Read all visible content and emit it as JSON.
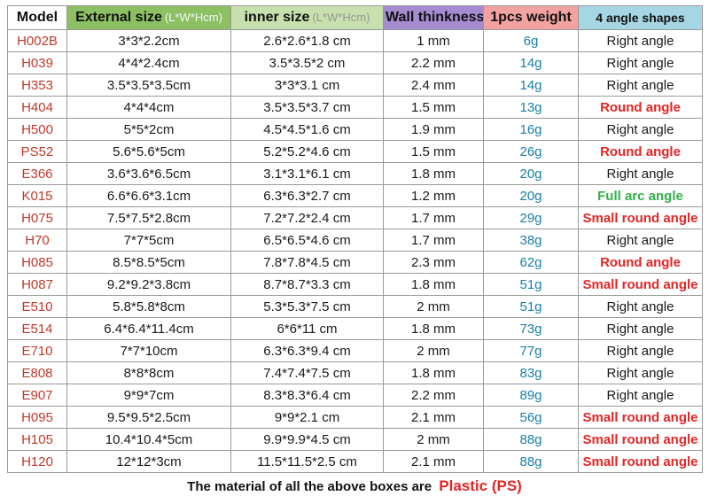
{
  "chart_data": {
    "type": "table",
    "columns": [
      {
        "label": "Model",
        "sub": ""
      },
      {
        "label": "External size",
        "sub": "(L*W*Hcm)"
      },
      {
        "label": "inner size",
        "sub": "(L*W*Hcm)"
      },
      {
        "label": "Wall thinkness",
        "sub": ""
      },
      {
        "label": "1pcs weight",
        "sub": ""
      },
      {
        "label": "4 angle shapes",
        "sub": ""
      }
    ],
    "rows": [
      {
        "model": "H002B",
        "external_size": "3*3*2.2cm",
        "inner_size": "2.6*2.6*1.8 cm",
        "wall_thickness": "1 mm",
        "weight": "6g",
        "angle_shape": "Right angle",
        "angle_type": "right"
      },
      {
        "model": "H039",
        "external_size": "4*4*2.4cm",
        "inner_size": "3.5*3.5*2 cm",
        "wall_thickness": "2.2 mm",
        "weight": "14g",
        "angle_shape": "Right angle",
        "angle_type": "right"
      },
      {
        "model": "H353",
        "external_size": "3.5*3.5*3.5cm",
        "inner_size": "3*3*3.1 cm",
        "wall_thickness": "2.4 mm",
        "weight": "14g",
        "angle_shape": "Right angle",
        "angle_type": "right"
      },
      {
        "model": "H404",
        "external_size": "4*4*4cm",
        "inner_size": "3.5*3.5*3.7 cm",
        "wall_thickness": "1.5 mm",
        "weight": "13g",
        "angle_shape": "Round angle",
        "angle_type": "round"
      },
      {
        "model": "H500",
        "external_size": "5*5*2cm",
        "inner_size": "4.5*4.5*1.6 cm",
        "wall_thickness": "1.9 mm",
        "weight": "16g",
        "angle_shape": "Right angle",
        "angle_type": "right"
      },
      {
        "model": "PS52",
        "external_size": "5.6*5.6*5cm",
        "inner_size": "5.2*5.2*4.6 cm",
        "wall_thickness": "1.5 mm",
        "weight": "26g",
        "angle_shape": "Round angle",
        "angle_type": "round"
      },
      {
        "model": "E366",
        "external_size": "3.6*3.6*6.5cm",
        "inner_size": "3.1*3.1*6.1 cm",
        "wall_thickness": "1.8 mm",
        "weight": "20g",
        "angle_shape": "Right angle",
        "angle_type": "right"
      },
      {
        "model": "K015",
        "external_size": "6.6*6.6*3.1cm",
        "inner_size": "6.3*6.3*2.7 cm",
        "wall_thickness": "1.2 mm",
        "weight": "20g",
        "angle_shape": "Full arc angle",
        "angle_type": "full_arc"
      },
      {
        "model": "H075",
        "external_size": "7.5*7.5*2.8cm",
        "inner_size": "7.2*7.2*2.4 cm",
        "wall_thickness": "1.7 mm",
        "weight": "29g",
        "angle_shape": "Small round angle",
        "angle_type": "small_round"
      },
      {
        "model": "H70",
        "external_size": "7*7*5cm",
        "inner_size": "6.5*6.5*4.6 cm",
        "wall_thickness": "1.7 mm",
        "weight": "38g",
        "angle_shape": "Right angle",
        "angle_type": "right"
      },
      {
        "model": "H085",
        "external_size": "8.5*8.5*5cm",
        "inner_size": "7.8*7.8*4.5 cm",
        "wall_thickness": "2.3 mm",
        "weight": "62g",
        "angle_shape": "Round angle",
        "angle_type": "round"
      },
      {
        "model": "H087",
        "external_size": "9.2*9.2*3.8cm",
        "inner_size": "8.7*8.7*3.3 cm",
        "wall_thickness": "1.8 mm",
        "weight": "51g",
        "angle_shape": "Small round angle",
        "angle_type": "small_round"
      },
      {
        "model": "E510",
        "external_size": "5.8*5.8*8cm",
        "inner_size": "5.3*5.3*7.5 cm",
        "wall_thickness": "2 mm",
        "weight": "51g",
        "angle_shape": "Right angle",
        "angle_type": "right"
      },
      {
        "model": "E514",
        "external_size": "6.4*6.4*11.4cm",
        "inner_size": "6*6*11 cm",
        "wall_thickness": "1.8 mm",
        "weight": "73g",
        "angle_shape": "Right angle",
        "angle_type": "right"
      },
      {
        "model": "E710",
        "external_size": "7*7*10cm",
        "inner_size": "6.3*6.3*9.4 cm",
        "wall_thickness": "2 mm",
        "weight": "77g",
        "angle_shape": "Right angle",
        "angle_type": "right"
      },
      {
        "model": "E808",
        "external_size": "8*8*8cm",
        "inner_size": "7.4*7.4*7.5 cm",
        "wall_thickness": "1.8 mm",
        "weight": "83g",
        "angle_shape": "Right angle",
        "angle_type": "right"
      },
      {
        "model": "E907",
        "external_size": "9*9*7cm",
        "inner_size": "8.3*8.3*6.4 cm",
        "wall_thickness": "2.2 mm",
        "weight": "89g",
        "angle_shape": "Right angle",
        "angle_type": "right"
      },
      {
        "model": "H095",
        "external_size": "9.5*9.5*2.5cm",
        "inner_size": "9*9*2.1 cm",
        "wall_thickness": "2.1 mm",
        "weight": "56g",
        "angle_shape": "Small round angle",
        "angle_type": "small_round"
      },
      {
        "model": "H105",
        "external_size": "10.4*10.4*5cm",
        "inner_size": "9.9*9.9*4.5 cm",
        "wall_thickness": "2 mm",
        "weight": "88g",
        "angle_shape": "Small round angle",
        "angle_type": "small_round"
      },
      {
        "model": "H120",
        "external_size": "12*12*3cm",
        "inner_size": "11.5*11.5*2.5 cm",
        "wall_thickness": "2.1 mm",
        "weight": "88g",
        "angle_shape": "Small round angle",
        "angle_type": "small_round"
      }
    ],
    "footer": {
      "text": "The material of all the above boxes are",
      "highlight": "Plastic (PS)"
    }
  },
  "colors": {
    "header_external_bg": "#8dc063",
    "header_inner_bg": "#c7e0ae",
    "header_wall_bg": "#a58bd0",
    "header_weight_bg": "#f2a3a1",
    "header_angle_bg": "#a6d6e3",
    "model_text": "#c0392b",
    "weight_text": "#1880a8",
    "angle_right": "#1a1a1a",
    "angle_round": "#e42525",
    "angle_full_arc": "#33b049",
    "angle_small_round": "#e42525",
    "footer_highlight": "#e42525",
    "border": "#999999"
  }
}
